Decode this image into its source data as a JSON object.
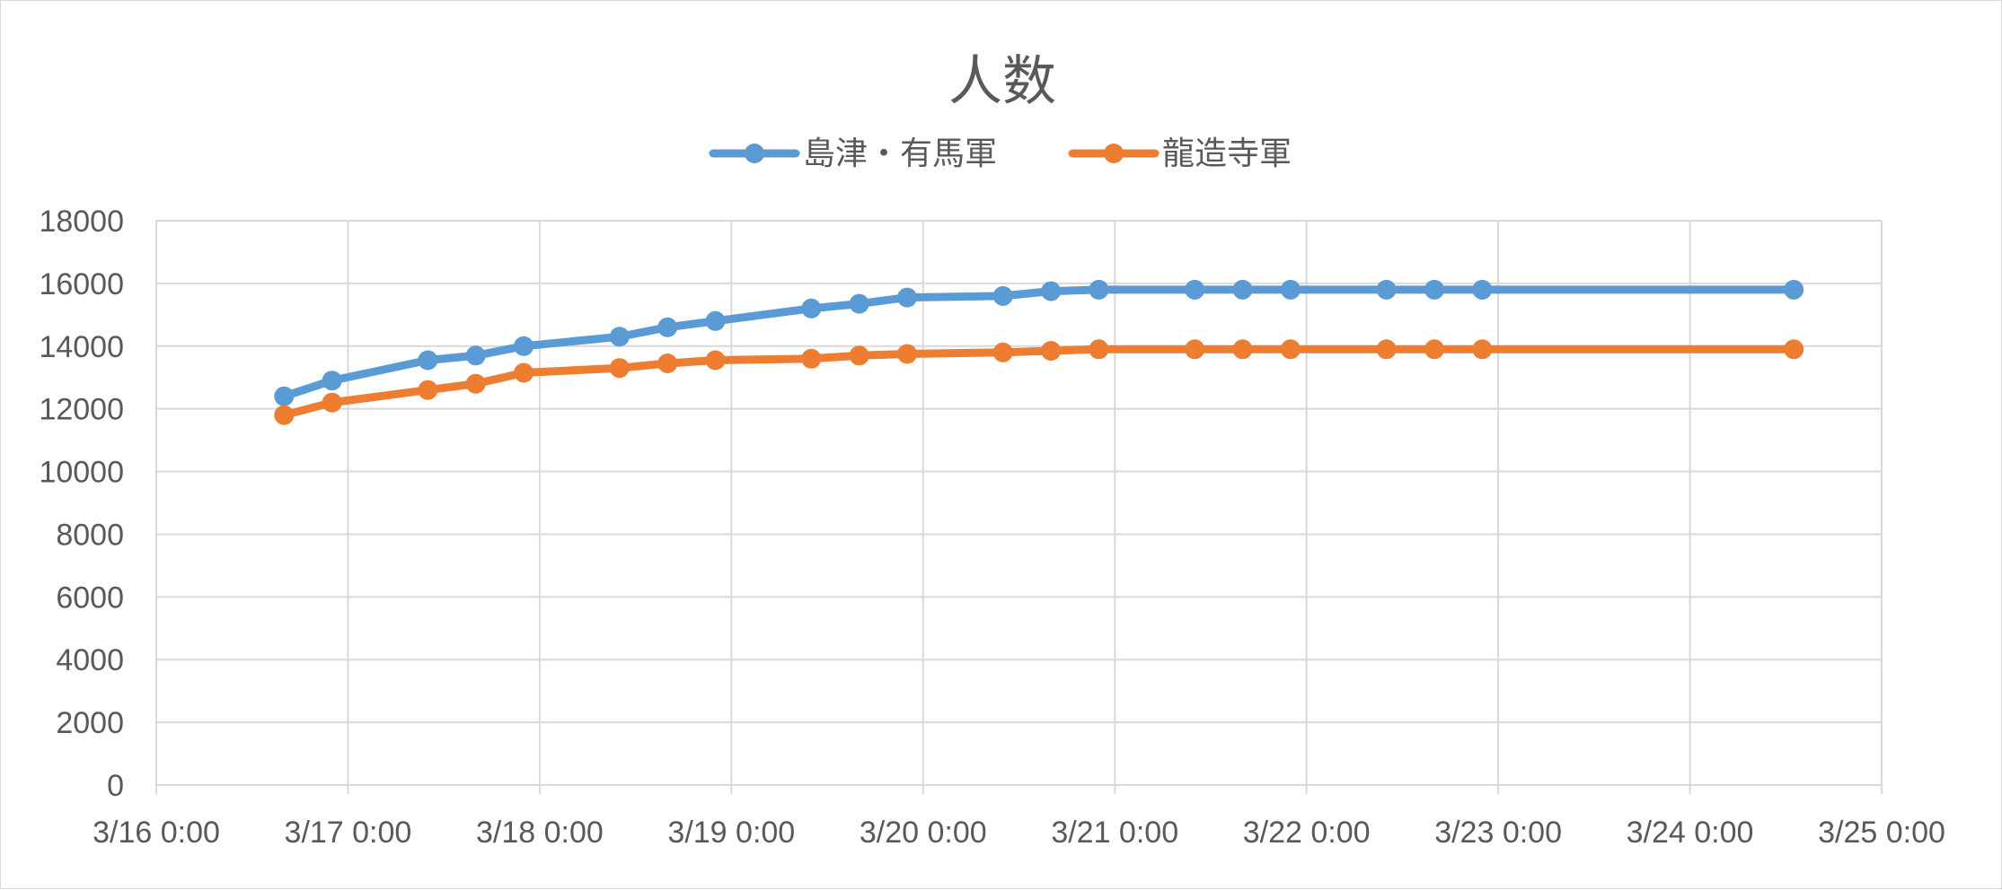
{
  "chart_data": {
    "type": "line",
    "title": "人数",
    "xlabel": "",
    "ylabel": "",
    "ylim": [
      0,
      18000
    ],
    "yticks": [
      "0",
      "2000",
      "4000",
      "6000",
      "8000",
      "10000",
      "12000",
      "14000",
      "16000",
      "18000"
    ],
    "xlim": [
      "2023-03-16 00:00",
      "2023-03-25 00:00"
    ],
    "xticks": [
      "3/16 0:00",
      "3/17 0:00",
      "3/18 0:00",
      "3/19 0:00",
      "3/20 0:00",
      "3/21 0:00",
      "3/22 0:00",
      "3/23 0:00",
      "3/24 0:00",
      "3/25 0:00"
    ],
    "grid": true,
    "legend_position": "top",
    "x": [
      "2023-03-16 16:00",
      "2023-03-16 22:00",
      "2023-03-17 10:00",
      "2023-03-17 16:00",
      "2023-03-17 22:00",
      "2023-03-18 10:00",
      "2023-03-18 16:00",
      "2023-03-18 22:00",
      "2023-03-19 10:00",
      "2023-03-19 16:00",
      "2023-03-19 22:00",
      "2023-03-20 10:00",
      "2023-03-20 16:00",
      "2023-03-20 22:00",
      "2023-03-21 10:00",
      "2023-03-21 16:00",
      "2023-03-21 22:00",
      "2023-03-22 10:00",
      "2023-03-22 16:00",
      "2023-03-22 22:00",
      "2023-03-24 13:00"
    ],
    "series": [
      {
        "name": "島津・有馬軍",
        "color": "#5b9bd5",
        "values": [
          12400,
          12900,
          13550,
          13700,
          14000,
          14300,
          14600,
          14800,
          15200,
          15350,
          15550,
          15600,
          15750,
          15800,
          15800,
          15800,
          15800,
          15800,
          15800,
          15800,
          15800
        ]
      },
      {
        "name": "龍造寺軍",
        "color": "#ed7d31",
        "values": [
          11800,
          12200,
          12600,
          12800,
          13150,
          13300,
          13450,
          13550,
          13600,
          13700,
          13750,
          13800,
          13850,
          13900,
          13900,
          13900,
          13900,
          13900,
          13900,
          13900,
          13900
        ]
      }
    ]
  }
}
